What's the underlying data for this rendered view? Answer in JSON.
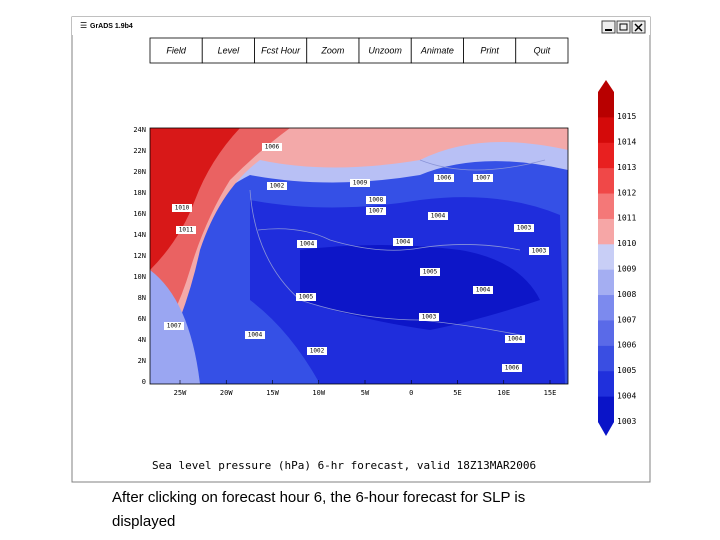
{
  "window": {
    "title": "GrADS 1.9b4"
  },
  "toolbar": {
    "buttons": [
      "Field",
      "Level",
      "Fcst Hour",
      "Zoom",
      "Unzoom",
      "Animate",
      "Print",
      "Quit"
    ]
  },
  "map": {
    "lat_labels": [
      "24N",
      "22N",
      "20N",
      "18N",
      "16N",
      "14N",
      "12N",
      "10N",
      "8N",
      "6N",
      "4N",
      "2N",
      "0"
    ],
    "lon_labels": [
      "25W",
      "20W",
      "15W",
      "10W",
      "5W",
      "0",
      "5E",
      "10E",
      "15E"
    ],
    "contour_labels": [
      "1006",
      "1002",
      "1009",
      "1008",
      "1007",
      "1006",
      "1007",
      "1010",
      "1011",
      "1004",
      "1003",
      "1004",
      "1004",
      "1003",
      "1005",
      "1004",
      "1005",
      "1003",
      "1007",
      "1004",
      "1002",
      "1006",
      "1004"
    ],
    "colorbar": [
      "1015",
      "1014",
      "1013",
      "1012",
      "1011",
      "1010",
      "1009",
      "1008",
      "1007",
      "1006",
      "1005",
      "1004",
      "1003"
    ],
    "title": "Sea level pressure (hPa) 6-hr forecast, valid 18Z13MAR2006"
  },
  "caption": {
    "lines": [
      "After clicking on forecast hour 6, the 6-hour forecast for SLP is",
      "displayed"
    ]
  }
}
